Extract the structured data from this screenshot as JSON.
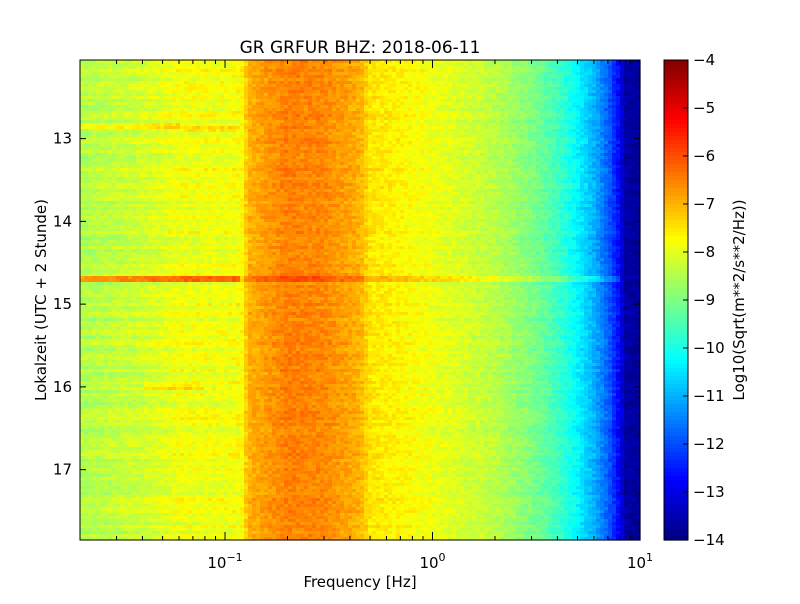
{
  "chart_data": {
    "type": "heatmap",
    "title": "GR GRFUR BHZ: 2018-06-11",
    "xlabel": "Frequency [Hz]",
    "ylabel": "Lokalzeit (UTC + 2 Stunde)",
    "x_scale": "log",
    "xlim": [
      0.02,
      10
    ],
    "ylim": [
      12.05,
      17.85
    ],
    "y_inverted": true,
    "x_ticks": [
      {
        "value": 0.1,
        "base": "10",
        "exp": "−1"
      },
      {
        "value": 1,
        "base": "10",
        "exp": "0"
      },
      {
        "value": 10,
        "base": "10",
        "exp": "1"
      }
    ],
    "y_ticks": [
      13,
      14,
      15,
      16,
      17
    ],
    "colorbar": {
      "label": "Log10(Sqrt(m**2/s**2/Hz))",
      "range": [
        -14,
        -4
      ],
      "ticks": [
        -4,
        -5,
        -6,
        -7,
        -8,
        -9,
        -10,
        -11,
        -12,
        -13,
        -14
      ],
      "colormap": "jet"
    },
    "frequency_profile": {
      "note_freq_hz": [
        0.02,
        0.04,
        0.06,
        0.1,
        0.12,
        0.13,
        0.2,
        0.3,
        0.45,
        0.5,
        0.6,
        1.0,
        2.0,
        3.0,
        4.0,
        5.0,
        6.0,
        7.0,
        8.0,
        8.5,
        10.0
      ],
      "value": [
        -8.5,
        -8.2,
        -7.9,
        -7.9,
        -7.8,
        -7.0,
        -6.5,
        -6.6,
        -7.0,
        -7.5,
        -7.6,
        -7.9,
        -8.4,
        -9.0,
        -9.6,
        -10.3,
        -11.0,
        -11.8,
        -12.8,
        -13.6,
        -13.8
      ]
    },
    "anomalies": [
      {
        "time": 14.7,
        "freq_range": [
          0.02,
          0.12
        ],
        "delta": 1.6
      },
      {
        "time": 14.7,
        "freq_range": [
          0.12,
          8.0
        ],
        "delta": 0.5
      },
      {
        "time": 12.85,
        "freq_range": [
          0.02,
          0.06
        ],
        "delta": 0.5
      },
      {
        "time": 12.88,
        "freq_range": [
          0.06,
          0.12
        ],
        "delta": 0.4
      },
      {
        "time": 16.0,
        "freq_range": [
          0.04,
          0.08
        ],
        "delta": 0.4
      }
    ]
  }
}
